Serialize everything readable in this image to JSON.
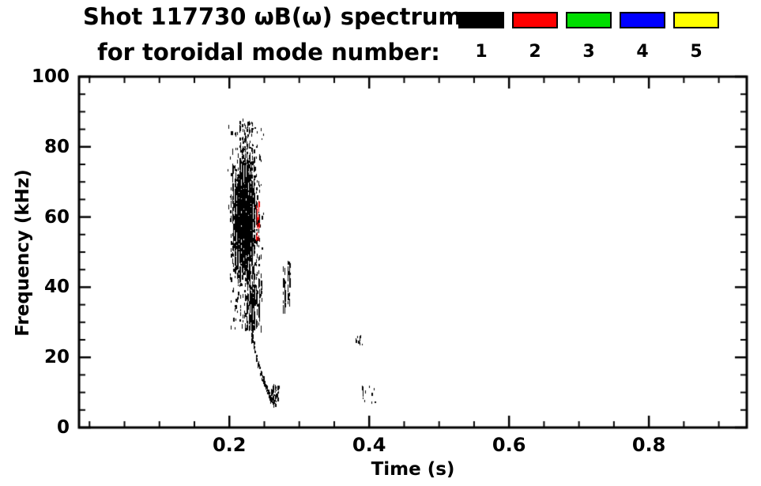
{
  "header": {
    "title_line1": "Shot 117730 ωB(ω) spectrum",
    "title_line2": "for toroidal mode number:"
  },
  "chart_data": {
    "type": "scatter",
    "title": "Shot 117730 ωB(ω) spectrum for toroidal mode number: 1 2 3 4 5",
    "xlabel": "Time (s)",
    "ylabel": "Frequency (kHz)",
    "xlim": [
      -0.015,
      0.94
    ],
    "ylim": [
      0,
      100
    ],
    "xticks": [
      0.2,
      0.4,
      0.6,
      0.8
    ],
    "xtick_labels": [
      "0.2",
      "0.4",
      "0.6",
      "0.8"
    ],
    "yticks": [
      0,
      20,
      40,
      60,
      80,
      100
    ],
    "ytick_labels": [
      "0",
      "20",
      "40",
      "60",
      "80",
      "100"
    ],
    "x_minor_step": 0.05,
    "y_minor_step": 5,
    "grid": false,
    "legend_position": "top-right",
    "note": "Spectrogram-style scatter of mode activity; clusters give time (s) / frequency (kHz) regions, point counts and dash sizes of the plotted bursts. Modes 3-5 have no visible points.",
    "series": [
      {
        "name": "n1",
        "label": "1",
        "color": "#000000",
        "clusters": [
          {
            "kind": "gauss",
            "t_mean": 0.2205,
            "t_sd": 0.0075,
            "f_mean": 59,
            "f_sd": 7.5,
            "t_clip": [
              0.2,
              0.2435
            ],
            "f_clip": [
              42,
              76
            ],
            "count": 2200,
            "dash": [
              2,
              7
            ]
          },
          {
            "kind": "gauss",
            "t_mean": 0.2215,
            "t_sd": 0.011,
            "f_mean": 58,
            "f_sd": 14,
            "t_clip": [
              0.196,
              0.25
            ],
            "f_clip": [
              28,
              88
            ],
            "count": 620,
            "dash": [
              2,
              6
            ]
          },
          {
            "kind": "uniform",
            "t": [
              0.213,
              0.234
            ],
            "f": [
              74,
              87
            ],
            "count": 90,
            "dash": [
              2,
              5
            ]
          },
          {
            "kind": "uniform",
            "t": [
              0.222,
              0.246
            ],
            "f": [
              28,
              45
            ],
            "count": 150,
            "dash": [
              3,
              9
            ]
          },
          {
            "kind": "uniform",
            "t": [
              0.2315,
              0.2345
            ],
            "f": [
              24,
              42
            ],
            "count": 70,
            "dash": [
              3,
              8
            ]
          },
          {
            "kind": "trace",
            "from": [
              0.235,
              23
            ],
            "to": [
              0.263,
              6
            ],
            "exp": 0.8,
            "jitter_t": 0.0009,
            "jitter_f": 0.9,
            "count": 95,
            "dash": [
              2,
              4
            ]
          },
          {
            "kind": "uniform",
            "t": [
              0.259,
              0.2705
            ],
            "f": [
              6,
              12
            ],
            "count": 55,
            "dash": [
              2,
              5
            ]
          },
          {
            "kind": "uniform",
            "t": [
              0.2765,
              0.28
            ],
            "f": [
              33,
              46
            ],
            "count": 40,
            "dash": [
              3,
              8
            ]
          },
          {
            "kind": "uniform",
            "t": [
              0.2825,
              0.2865
            ],
            "f": [
              35,
              47
            ],
            "count": 34,
            "dash": [
              3,
              8
            ]
          },
          {
            "kind": "uniform",
            "t": [
              0.381,
              0.389
            ],
            "f": [
              23.5,
              26
            ],
            "count": 10,
            "dash": [
              2,
              4
            ]
          },
          {
            "kind": "uniform",
            "t": [
              0.388,
              0.41
            ],
            "f": [
              7,
              12
            ],
            "count": 13,
            "dash": [
              2,
              4
            ]
          }
        ]
      },
      {
        "name": "n2",
        "label": "2",
        "color": "#ff0000",
        "clusters": [
          {
            "kind": "uniform",
            "t": [
              0.237,
              0.2415
            ],
            "f": [
              53,
              64
            ],
            "count": 22,
            "dash": [
              3,
              6
            ]
          }
        ]
      },
      {
        "name": "n3",
        "label": "3",
        "color": "#00dd00",
        "clusters": []
      },
      {
        "name": "n4",
        "label": "4",
        "color": "#0000ff",
        "clusters": []
      },
      {
        "name": "n5",
        "label": "5",
        "color": "#ffff00",
        "clusters": []
      }
    ]
  }
}
